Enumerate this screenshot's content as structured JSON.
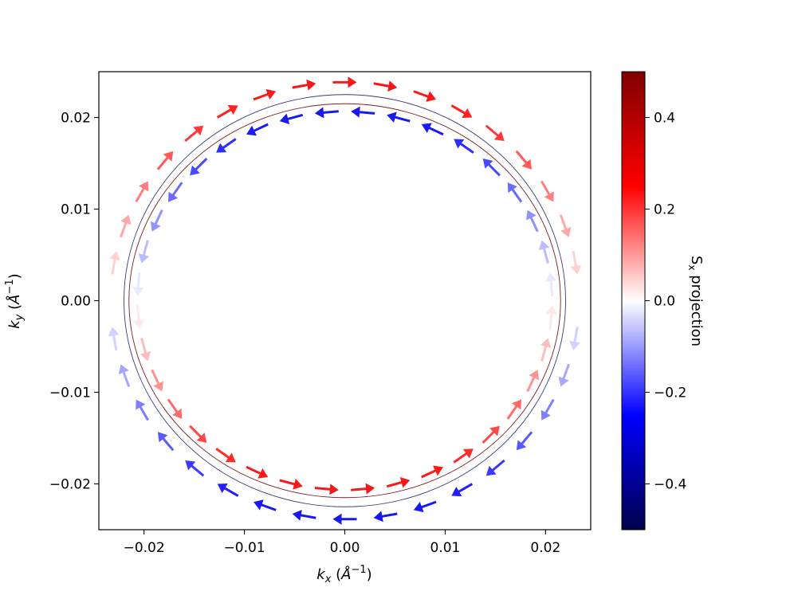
{
  "chart_data": {
    "type": "scatter",
    "subtype": "quiver",
    "title": "",
    "xlabel": "k_x  (Å^-1)",
    "ylabel": "k_y  (Å^-1)",
    "xlim": [
      -0.0245,
      0.0245
    ],
    "ylim": [
      -0.025,
      0.025
    ],
    "x_ticks": [
      -0.02,
      -0.01,
      0.0,
      0.01,
      0.02
    ],
    "x_tick_labels": [
      "−0.02",
      "−0.01",
      "0.00",
      "0.01",
      "0.02"
    ],
    "y_ticks": [
      -0.02,
      -0.01,
      0.0,
      0.01,
      0.02
    ],
    "y_tick_labels": [
      "−0.02",
      "−0.01",
      "0.00",
      "0.01",
      "0.02"
    ],
    "grid": false,
    "colormap": "seismic",
    "colorbar": {
      "label": "S_x projection",
      "range": [
        -0.5,
        0.5
      ],
      "ticks": [
        0.4,
        0.2,
        0.0,
        -0.2,
        -0.4
      ],
      "tick_labels": [
        "0.4",
        "0.2",
        "0.0",
        "−0.2",
        "−0.4"
      ],
      "colors": {
        "min": "#00004c",
        "mid_low": "#0000ff",
        "mid": "#ffffff",
        "mid_high": "#ff0000",
        "max": "#800000"
      }
    },
    "series": [
      {
        "name": "outer contour",
        "radius_x": 0.022,
        "radius_y": 0.0225,
        "line_color": "#3a3a7a"
      },
      {
        "name": "inner contour",
        "radius_x": 0.0215,
        "radius_y": 0.0215,
        "line_color": "#7a2020"
      }
    ],
    "arrow_count": 72,
    "arrow_color_rule": "Sx ≈ -0.3·sin(angle); outer branch red near top, blue near bottom; inner branch reversed"
  }
}
